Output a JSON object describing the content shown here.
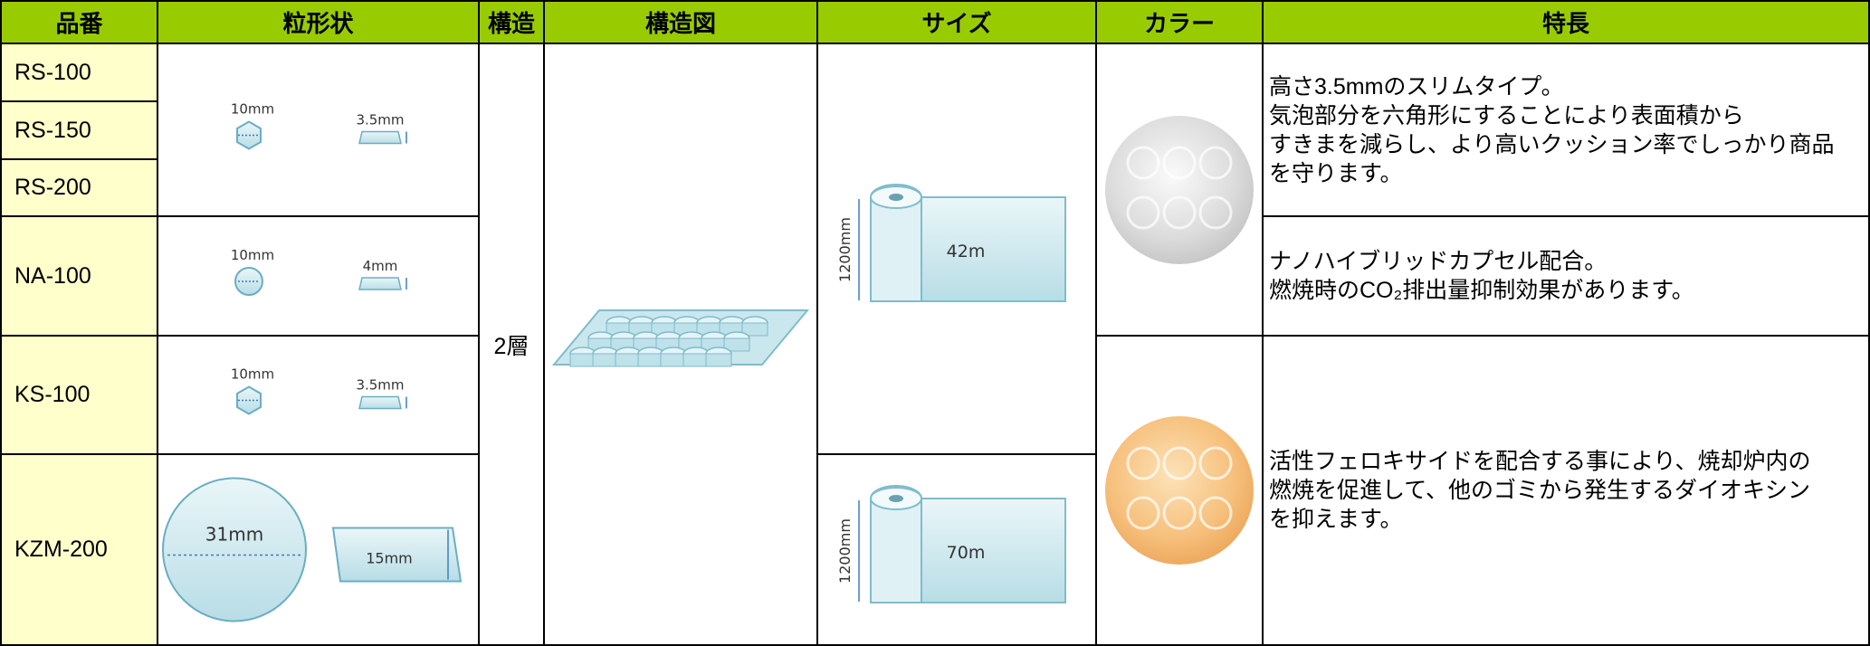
{
  "header": [
    "品番",
    "粒形状",
    "構造",
    "構造図",
    "サイズ",
    "カラー",
    "特長"
  ],
  "products": [
    "RS-100",
    "RS-150",
    "RS-200",
    "NA-100",
    "KS-100",
    "KZM-200"
  ],
  "shapes": [
    {
      "diameter": "10mm",
      "height": "3.5mm"
    },
    {
      "diameter": "10mm",
      "height": "4mm"
    },
    {
      "diameter": "10mm",
      "height": "3.5mm"
    },
    {
      "diameter": "31mm",
      "height": "15mm"
    }
  ],
  "structure": "2層",
  "sizes": [
    {
      "width": "1200mm",
      "length": "42m"
    },
    {
      "width": "1200mm",
      "length": "70m"
    }
  ],
  "features": [
    [
      "高さ3.5mmのスリムタイプ。",
      "気泡部分を六角形にすることにより表面積から",
      "すきまを減らし、より高いクッション率でしっかり商品",
      "を守ります。"
    ],
    [
      "ナノハイブリッドカプセル配合。",
      "燃焼時のCO₂排出量抑制効果があります。"
    ],
    [
      "活性フェロキサイドを配合する事により、焼却炉内の",
      "燃焼を促進して、他のゴミから発生するダイオキシン",
      "を抑えます。"
    ]
  ]
}
